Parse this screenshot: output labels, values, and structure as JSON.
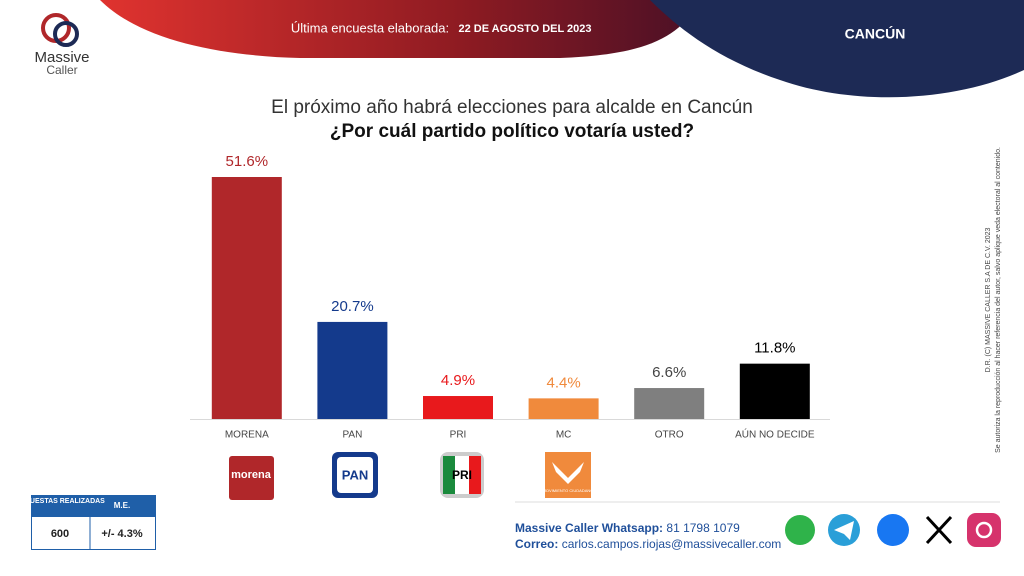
{
  "header": {
    "survey_label": "Última encuesta elaborada:",
    "survey_date": "22 DE AGOSTO DEL 2023",
    "location": "CANCÚN"
  },
  "logo": {
    "line1": "Massive",
    "line2": "Caller"
  },
  "chart_data": {
    "type": "bar",
    "title": "El próximo año habrá elecciones para alcalde en Cancún",
    "subtitle": "¿Por cuál partido político votaría usted?",
    "categories": [
      "MORENA",
      "PAN",
      "PRI",
      "MC",
      "OTRO",
      "AÚN NO DECIDE"
    ],
    "values": [
      51.6,
      20.7,
      4.9,
      4.4,
      6.6,
      11.8
    ],
    "value_labels": [
      "51.6%",
      "20.7%",
      "4.9%",
      "4.4%",
      "6.6%",
      "11.8%"
    ],
    "colors": [
      "#b0272a",
      "#143a8c",
      "#e8191c",
      "#f08a3c",
      "#7f7f7f",
      "#000000"
    ],
    "label_colors": [
      "#b0272a",
      "#143a8c",
      "#e8191c",
      "#f08a3c",
      "#444444",
      "#000000"
    ]
  },
  "party_logos": {
    "morena": "morena",
    "pan": "PAN",
    "pri": "PRI",
    "mc": "MOVIMIENTO CIUDADANO"
  },
  "table": {
    "headers": [
      "ENCUESTAS REALIZADAS",
      "M.E."
    ],
    "row": [
      "600",
      "+/- 4.3%"
    ]
  },
  "footer": {
    "whatsapp_label": "Massive Caller Whatsapp:",
    "whatsapp_number": "81 1798 1079",
    "email_label": "Correo:",
    "email": "carlos.campos.riojas@massivecaller.com"
  },
  "disclaimer": {
    "line1": "D.R. (C) MASSIVE CALLER S.A DE C.V. 2023",
    "line2": "Se autoriza la reproducción al hacer referencia del autor, salvo aplique veda electoral al contenido."
  }
}
